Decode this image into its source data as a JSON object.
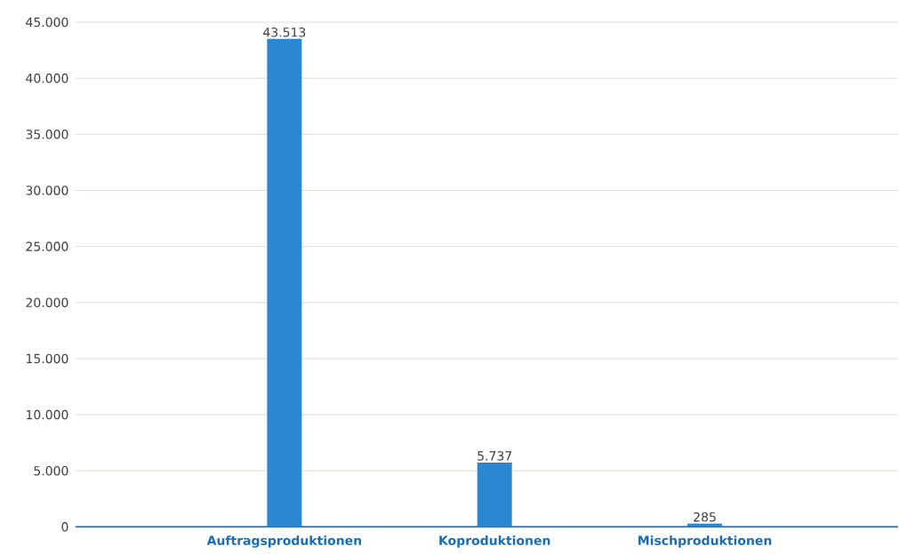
{
  "chart_data": {
    "type": "bar",
    "categories": [
      "Auftragsproduktionen",
      "Koproduktionen",
      "Mischproduktionen"
    ],
    "values": [
      43513,
      5737,
      285
    ],
    "value_labels": [
      "43.513",
      "5.737",
      "285"
    ],
    "color": "#2b87cf",
    "ylim": [
      0,
      45000
    ],
    "yticks": [
      0,
      {
        "value": 5000,
        "label": "5.000"
      },
      {
        "value": 10000,
        "label": "10.000"
      },
      {
        "value": 15000,
        "label": "15.000"
      },
      {
        "value": 20000,
        "label": "20.000"
      },
      {
        "value": 25000,
        "label": "25.000"
      },
      {
        "value": 30000,
        "label": "30.000"
      },
      {
        "value": 35000,
        "label": "35.000"
      },
      {
        "value": 40000,
        "label": "40.000"
      },
      {
        "value": 45000,
        "label": "45.000"
      }
    ],
    "grid": "y",
    "legend": false
  }
}
